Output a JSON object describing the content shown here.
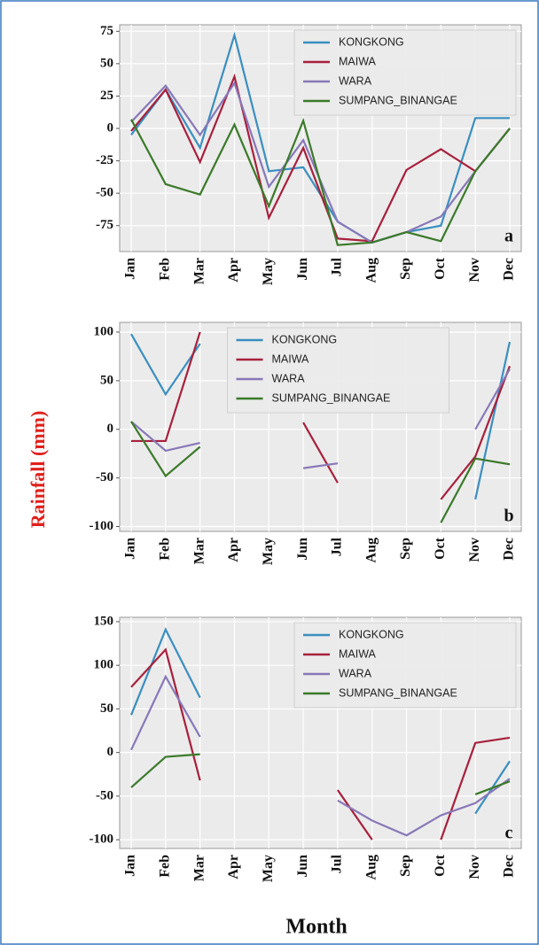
{
  "ylabel": "Rainfall (mm)",
  "xlabel": "Month",
  "chart_data": [
    {
      "type": "line",
      "panel_label": "a",
      "categories": [
        "Jan",
        "Feb",
        "Mar",
        "Apr",
        "May",
        "Jun",
        "Jul",
        "Aug",
        "Sep",
        "Oct",
        "Nov",
        "Dec"
      ],
      "ylim": [
        -95,
        80
      ],
      "yticks": [
        -75,
        -50,
        -25,
        0,
        25,
        50,
        75
      ],
      "grid": true,
      "legend": "upper right",
      "series": [
        {
          "name": "KONGKONG",
          "color": "#3a8fc0",
          "values": [
            -5,
            30,
            -15,
            72,
            -33,
            -30,
            -72,
            -88,
            -80,
            -75,
            8,
            8
          ]
        },
        {
          "name": "MAIWA",
          "color": "#a8203c",
          "values": [
            -2,
            30,
            -26,
            40,
            -69,
            -15,
            -85,
            -87,
            -32,
            -16,
            -33,
            0
          ]
        },
        {
          "name": "WARA",
          "color": "#8878b8",
          "values": [
            5,
            33,
            -5,
            35,
            -45,
            -9,
            -72,
            -88,
            -80,
            -68,
            -33,
            0
          ]
        },
        {
          "name": "SUMPANG_BINANGAE",
          "color": "#3b7a2a",
          "values": [
            7,
            -43,
            -51,
            3,
            -60,
            6,
            -90,
            -88,
            -80,
            -87,
            -33,
            0
          ]
        }
      ]
    },
    {
      "type": "line",
      "panel_label": "b",
      "categories": [
        "Jan",
        "Feb",
        "Mar",
        "Apr",
        "May",
        "Jun",
        "Jul",
        "Aug",
        "Sep",
        "Oct",
        "Nov",
        "Dec"
      ],
      "ylim": [
        -105,
        110
      ],
      "yticks": [
        -100,
        -50,
        0,
        50,
        100
      ],
      "grid": true,
      "legend": "upper center",
      "series": [
        {
          "name": "KONGKONG",
          "color": "#3a8fc0",
          "values": [
            98,
            36,
            88,
            null,
            null,
            null,
            null,
            null,
            null,
            null,
            -72,
            90
          ]
        },
        {
          "name": "MAIWA",
          "color": "#a8203c",
          "values": [
            -12,
            -12,
            100,
            null,
            null,
            7,
            -55,
            null,
            null,
            -72,
            -28,
            65
          ]
        },
        {
          "name": "WARA",
          "color": "#8878b8",
          "values": [
            8,
            -22,
            -14,
            null,
            null,
            -40,
            -35,
            null,
            null,
            null,
            0,
            62
          ]
        },
        {
          "name": "SUMPANG_BINANGAE",
          "color": "#3b7a2a",
          "values": [
            8,
            -48,
            -18,
            null,
            null,
            null,
            null,
            null,
            null,
            -96,
            -30,
            -36
          ]
        }
      ]
    },
    {
      "type": "line",
      "panel_label": "c",
      "categories": [
        "Jan",
        "Feb",
        "Mar",
        "Apr",
        "May",
        "Jun",
        "Jul",
        "Aug",
        "Sep",
        "Oct",
        "Nov",
        "Dec"
      ],
      "ylim": [
        -110,
        155
      ],
      "yticks": [
        -100,
        -50,
        0,
        50,
        100,
        150
      ],
      "grid": true,
      "legend": "upper right",
      "series": [
        {
          "name": "KONGKONG",
          "color": "#3a8fc0",
          "values": [
            43,
            141,
            63,
            null,
            null,
            null,
            null,
            null,
            null,
            null,
            -70,
            -10
          ]
        },
        {
          "name": "MAIWA",
          "color": "#a8203c",
          "values": [
            75,
            118,
            -32,
            null,
            null,
            null,
            -43,
            -100,
            null,
            -100,
            11,
            17
          ]
        },
        {
          "name": "WARA",
          "color": "#8878b8",
          "values": [
            3,
            87,
            18,
            null,
            null,
            null,
            -55,
            -78,
            -95,
            -72,
            -58,
            -30
          ]
        },
        {
          "name": "SUMPANG_BINANGAE",
          "color": "#3b7a2a",
          "values": [
            -40,
            -5,
            -2,
            null,
            null,
            null,
            null,
            null,
            null,
            null,
            -48,
            -33
          ]
        }
      ]
    }
  ]
}
